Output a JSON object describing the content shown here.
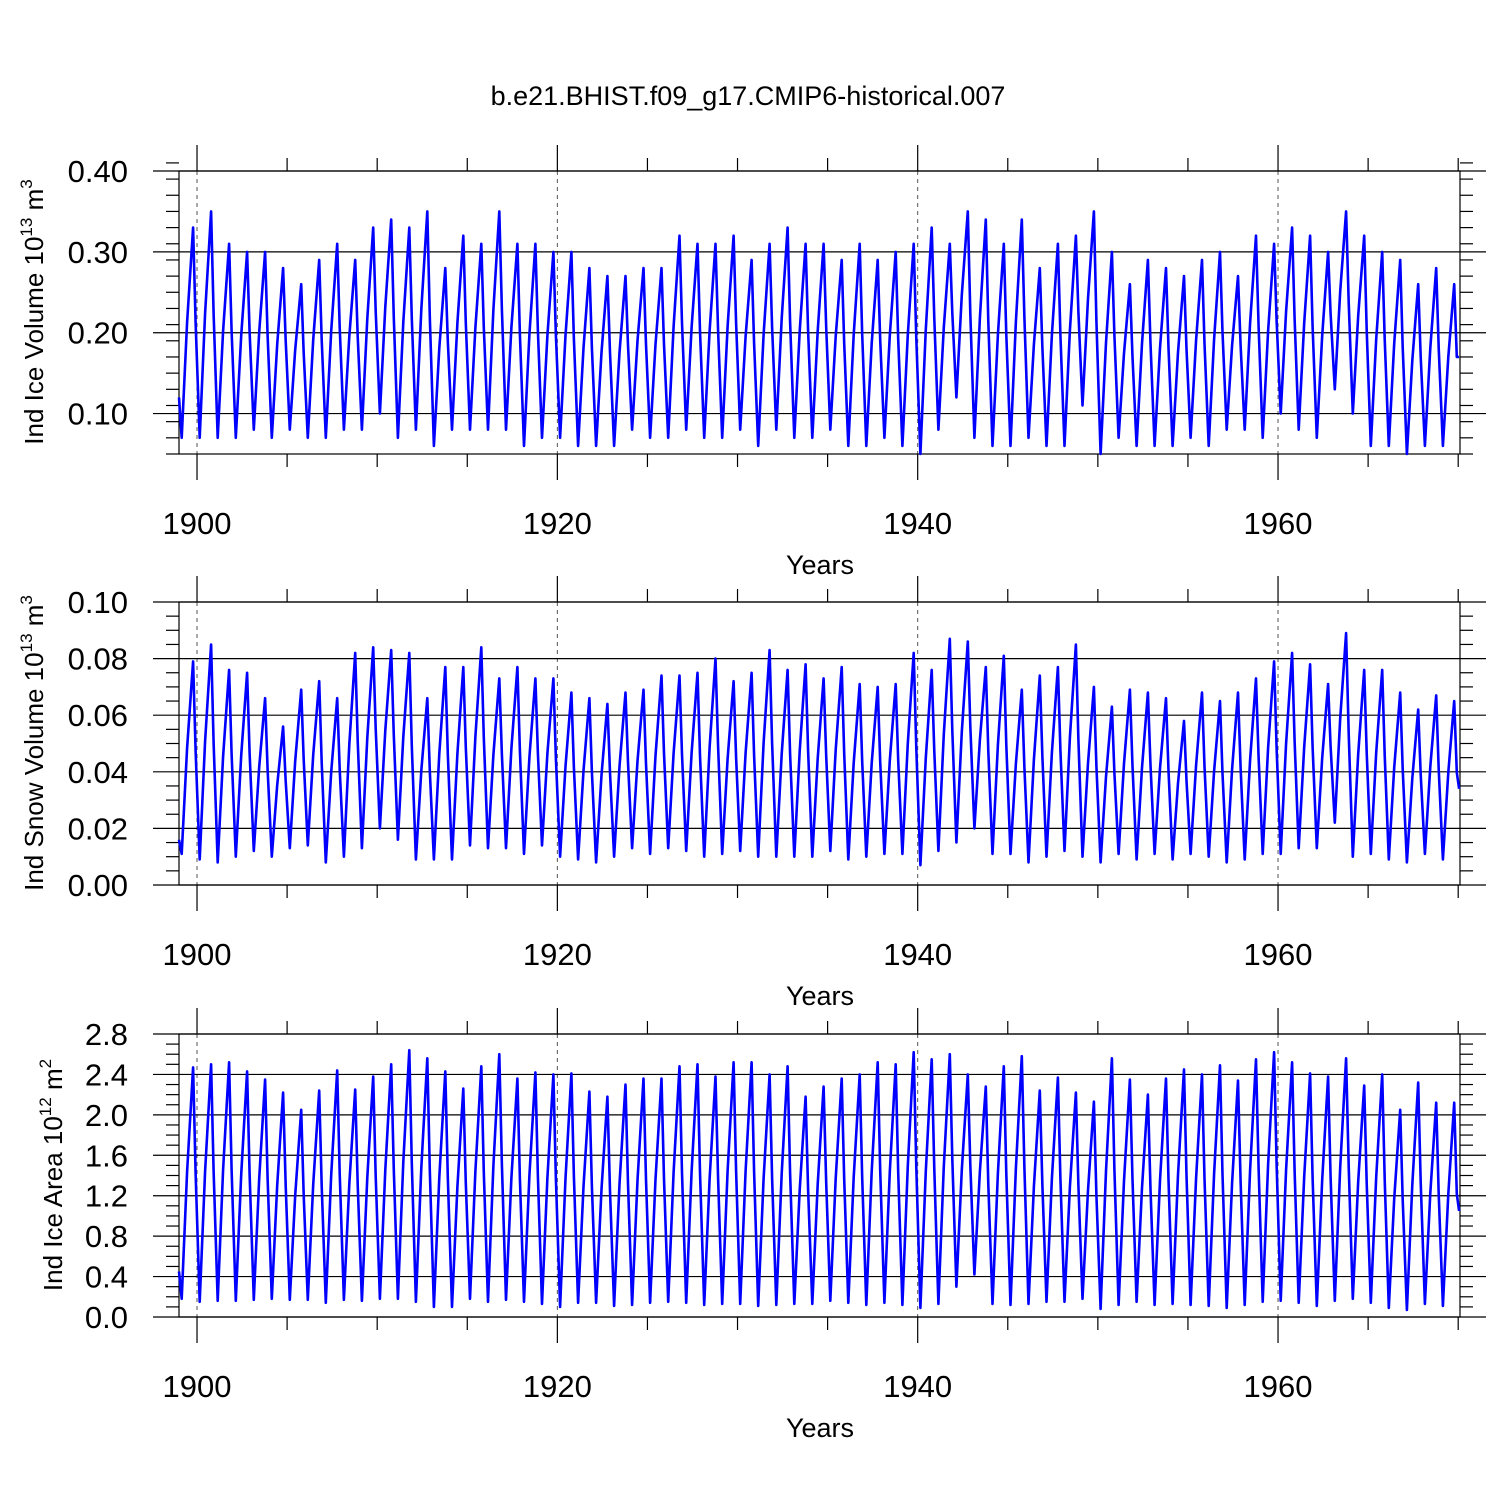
{
  "figure": {
    "title": "b.e21.BHIST.f09_g17.CMIP6-historical.007",
    "line_color": "#0000ff"
  },
  "chart_data": [
    {
      "type": "line",
      "name": "ice-volume",
      "ylabel_main": "Ind Ice Volume 10",
      "ylabel_exp": "13",
      "ylabel_unit": " m",
      "ylabel_unit_exp": "3",
      "xlabel": "Years",
      "xlim": [
        1899,
        1970.1
      ],
      "ylim": [
        0.05,
        0.4
      ],
      "yticks": [
        0.1,
        0.2,
        0.3,
        0.4
      ],
      "yticklabels": [
        "0.10",
        "0.20",
        "0.30",
        "0.40"
      ],
      "xticks": [
        1900,
        1920,
        1940,
        1960
      ],
      "xticklabels": [
        "1900",
        "1920",
        "1940",
        "1960"
      ],
      "minor_x_step": 5,
      "minor_y_step": 0.02,
      "reference_lines_x": [
        1900,
        1920,
        1940,
        1960
      ],
      "start_year": 1899,
      "start_value": 0.12,
      "end_value": 0.17,
      "years": [
        1899,
        1900,
        1901,
        1902,
        1903,
        1904,
        1905,
        1906,
        1907,
        1908,
        1909,
        1910,
        1911,
        1912,
        1913,
        1914,
        1915,
        1916,
        1917,
        1918,
        1919,
        1920,
        1921,
        1922,
        1923,
        1924,
        1925,
        1926,
        1927,
        1928,
        1929,
        1930,
        1931,
        1932,
        1933,
        1934,
        1935,
        1936,
        1937,
        1938,
        1939,
        1940,
        1941,
        1942,
        1943,
        1944,
        1945,
        1946,
        1947,
        1948,
        1949,
        1950,
        1951,
        1952,
        1953,
        1954,
        1955,
        1956,
        1957,
        1958,
        1959,
        1960,
        1961,
        1962,
        1963,
        1964,
        1965,
        1966,
        1967,
        1968,
        1969
      ],
      "annual_max": [
        0.33,
        0.35,
        0.31,
        0.3,
        0.3,
        0.28,
        0.26,
        0.29,
        0.31,
        0.29,
        0.33,
        0.34,
        0.33,
        0.35,
        0.28,
        0.32,
        0.31,
        0.35,
        0.31,
        0.31,
        0.3,
        0.3,
        0.28,
        0.27,
        0.27,
        0.28,
        0.28,
        0.32,
        0.31,
        0.31,
        0.32,
        0.29,
        0.31,
        0.33,
        0.31,
        0.31,
        0.29,
        0.31,
        0.29,
        0.3,
        0.31,
        0.33,
        0.31,
        0.35,
        0.34,
        0.31,
        0.34,
        0.28,
        0.31,
        0.32,
        0.35,
        0.3,
        0.26,
        0.29,
        0.28,
        0.27,
        0.29,
        0.3,
        0.27,
        0.32,
        0.31,
        0.33,
        0.32,
        0.3,
        0.35,
        0.32,
        0.3,
        0.29,
        0.26,
        0.28,
        0.26
      ],
      "annual_min": [
        0.07,
        0.07,
        0.07,
        0.07,
        0.08,
        0.07,
        0.08,
        0.07,
        0.07,
        0.08,
        0.08,
        0.1,
        0.07,
        0.08,
        0.06,
        0.08,
        0.08,
        0.08,
        0.08,
        0.06,
        0.07,
        0.07,
        0.06,
        0.06,
        0.06,
        0.08,
        0.07,
        0.07,
        0.08,
        0.07,
        0.07,
        0.08,
        0.06,
        0.08,
        0.07,
        0.07,
        0.08,
        0.06,
        0.06,
        0.07,
        0.06,
        0.05,
        0.08,
        0.12,
        0.07,
        0.06,
        0.06,
        0.07,
        0.06,
        0.06,
        0.11,
        0.05,
        0.07,
        0.06,
        0.06,
        0.06,
        0.07,
        0.06,
        0.08,
        0.08,
        0.07,
        0.1,
        0.08,
        0.07,
        0.13,
        0.1,
        0.06,
        0.06,
        0.05,
        0.06,
        0.06
      ]
    },
    {
      "type": "line",
      "name": "snow-volume",
      "ylabel_main": "Ind Snow Volume 10",
      "ylabel_exp": "13",
      "ylabel_unit": " m",
      "ylabel_unit_exp": "3",
      "xlabel": "Years",
      "xlim": [
        1899,
        1970.1
      ],
      "ylim": [
        0.0,
        0.1
      ],
      "yticks": [
        0.0,
        0.02,
        0.04,
        0.06,
        0.08,
        0.1
      ],
      "yticklabels": [
        "0.00",
        "0.02",
        "0.04",
        "0.06",
        "0.08",
        "0.10"
      ],
      "xticks": [
        1900,
        1920,
        1940,
        1960
      ],
      "xticklabels": [
        "1900",
        "1920",
        "1940",
        "1960"
      ],
      "minor_x_step": 5,
      "minor_y_step": 0.005,
      "reference_lines_x": [
        1900,
        1920,
        1940,
        1960
      ],
      "start_year": 1899,
      "start_value": 0.016,
      "end_value": 0.034,
      "years": [
        1899,
        1900,
        1901,
        1902,
        1903,
        1904,
        1905,
        1906,
        1907,
        1908,
        1909,
        1910,
        1911,
        1912,
        1913,
        1914,
        1915,
        1916,
        1917,
        1918,
        1919,
        1920,
        1921,
        1922,
        1923,
        1924,
        1925,
        1926,
        1927,
        1928,
        1929,
        1930,
        1931,
        1932,
        1933,
        1934,
        1935,
        1936,
        1937,
        1938,
        1939,
        1940,
        1941,
        1942,
        1943,
        1944,
        1945,
        1946,
        1947,
        1948,
        1949,
        1950,
        1951,
        1952,
        1953,
        1954,
        1955,
        1956,
        1957,
        1958,
        1959,
        1960,
        1961,
        1962,
        1963,
        1964,
        1965,
        1966,
        1967,
        1968,
        1969
      ],
      "annual_max": [
        0.079,
        0.085,
        0.076,
        0.075,
        0.066,
        0.056,
        0.069,
        0.072,
        0.066,
        0.082,
        0.084,
        0.083,
        0.082,
        0.066,
        0.077,
        0.077,
        0.084,
        0.073,
        0.077,
        0.073,
        0.073,
        0.068,
        0.066,
        0.064,
        0.068,
        0.069,
        0.074,
        0.074,
        0.075,
        0.08,
        0.072,
        0.075,
        0.083,
        0.076,
        0.078,
        0.073,
        0.077,
        0.071,
        0.07,
        0.071,
        0.082,
        0.076,
        0.087,
        0.086,
        0.077,
        0.081,
        0.069,
        0.074,
        0.077,
        0.085,
        0.07,
        0.063,
        0.069,
        0.068,
        0.066,
        0.058,
        0.068,
        0.065,
        0.068,
        0.073,
        0.079,
        0.082,
        0.078,
        0.071,
        0.089,
        0.076,
        0.076,
        0.068,
        0.062,
        0.067,
        0.065
      ],
      "annual_min": [
        0.011,
        0.009,
        0.008,
        0.01,
        0.012,
        0.01,
        0.013,
        0.014,
        0.008,
        0.01,
        0.013,
        0.02,
        0.016,
        0.009,
        0.009,
        0.009,
        0.014,
        0.013,
        0.013,
        0.011,
        0.014,
        0.01,
        0.009,
        0.008,
        0.01,
        0.013,
        0.011,
        0.013,
        0.012,
        0.01,
        0.011,
        0.012,
        0.01,
        0.01,
        0.01,
        0.01,
        0.012,
        0.009,
        0.01,
        0.011,
        0.011,
        0.007,
        0.012,
        0.015,
        0.02,
        0.011,
        0.011,
        0.008,
        0.01,
        0.012,
        0.01,
        0.008,
        0.011,
        0.009,
        0.011,
        0.009,
        0.011,
        0.01,
        0.008,
        0.009,
        0.011,
        0.011,
        0.013,
        0.013,
        0.022,
        0.01,
        0.011,
        0.009,
        0.008,
        0.011,
        0.009
      ]
    },
    {
      "type": "line",
      "name": "ice-area",
      "ylabel_main": "Ind Ice Area 10",
      "ylabel_exp": "12",
      "ylabel_unit": " m",
      "ylabel_unit_exp": "2",
      "xlabel": "Years",
      "xlim": [
        1899,
        1970.1
      ],
      "ylim": [
        0.0,
        2.8
      ],
      "yticks": [
        0.0,
        0.4,
        0.8,
        1.2,
        1.6,
        2.0,
        2.4,
        2.8
      ],
      "yticklabels": [
        "0.0",
        "0.4",
        "0.8",
        "1.2",
        "1.6",
        "2.0",
        "2.4",
        "2.8"
      ],
      "xticks": [
        1900,
        1920,
        1940,
        1960
      ],
      "xticklabels": [
        "1900",
        "1920",
        "1940",
        "1960"
      ],
      "minor_x_step": 5,
      "minor_y_step": 0.1,
      "reference_lines_x": [
        1900,
        1920,
        1940,
        1960
      ],
      "start_year": 1899,
      "start_value": 0.45,
      "end_value": 1.05,
      "years": [
        1899,
        1900,
        1901,
        1902,
        1903,
        1904,
        1905,
        1906,
        1907,
        1908,
        1909,
        1910,
        1911,
        1912,
        1913,
        1914,
        1915,
        1916,
        1917,
        1918,
        1919,
        1920,
        1921,
        1922,
        1923,
        1924,
        1925,
        1926,
        1927,
        1928,
        1929,
        1930,
        1931,
        1932,
        1933,
        1934,
        1935,
        1936,
        1937,
        1938,
        1939,
        1940,
        1941,
        1942,
        1943,
        1944,
        1945,
        1946,
        1947,
        1948,
        1949,
        1950,
        1951,
        1952,
        1953,
        1954,
        1955,
        1956,
        1957,
        1958,
        1959,
        1960,
        1961,
        1962,
        1963,
        1964,
        1965,
        1966,
        1967,
        1968,
        1969
      ],
      "annual_max": [
        2.47,
        2.5,
        2.52,
        2.43,
        2.35,
        2.22,
        2.05,
        2.24,
        2.44,
        2.25,
        2.38,
        2.5,
        2.64,
        2.56,
        2.43,
        2.26,
        2.48,
        2.6,
        2.36,
        2.42,
        2.4,
        2.41,
        2.23,
        2.18,
        2.3,
        2.36,
        2.36,
        2.48,
        2.5,
        2.38,
        2.52,
        2.52,
        2.4,
        2.48,
        2.18,
        2.28,
        2.36,
        2.4,
        2.52,
        2.5,
        2.62,
        2.55,
        2.6,
        2.4,
        2.28,
        2.48,
        2.58,
        2.24,
        2.37,
        2.22,
        2.13,
        2.56,
        2.35,
        2.2,
        2.36,
        2.45,
        2.4,
        2.49,
        2.34,
        2.55,
        2.62,
        2.52,
        2.41,
        2.38,
        2.56,
        2.29,
        2.4,
        2.05,
        2.32,
        2.12,
        2.12
      ],
      "annual_min": [
        0.18,
        0.15,
        0.16,
        0.16,
        0.17,
        0.18,
        0.17,
        0.17,
        0.14,
        0.17,
        0.16,
        0.18,
        0.18,
        0.15,
        0.1,
        0.1,
        0.18,
        0.15,
        0.17,
        0.15,
        0.13,
        0.1,
        0.14,
        0.14,
        0.11,
        0.12,
        0.14,
        0.15,
        0.14,
        0.12,
        0.13,
        0.13,
        0.11,
        0.12,
        0.13,
        0.13,
        0.16,
        0.14,
        0.12,
        0.14,
        0.12,
        0.09,
        0.13,
        0.3,
        0.42,
        0.13,
        0.12,
        0.13,
        0.15,
        0.15,
        0.18,
        0.08,
        0.12,
        0.15,
        0.12,
        0.13,
        0.12,
        0.11,
        0.09,
        0.12,
        0.15,
        0.16,
        0.14,
        0.11,
        0.16,
        0.18,
        0.14,
        0.09,
        0.07,
        0.13,
        0.11
      ]
    }
  ]
}
